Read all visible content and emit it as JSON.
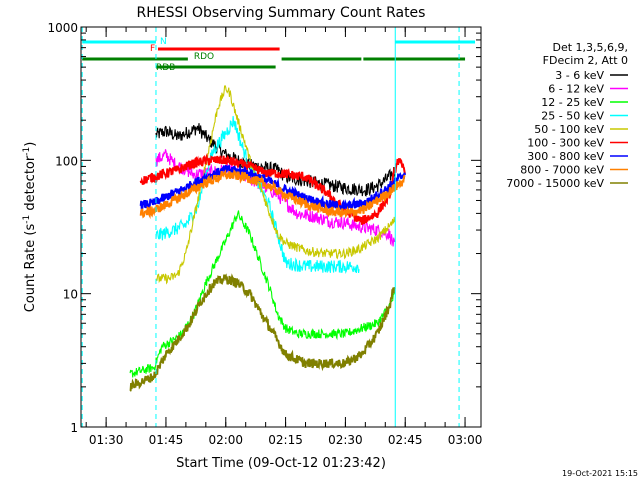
{
  "chart_data": {
    "type": "line",
    "title": "RHESSI Observing Summary Count Rates",
    "xlabel": "Start Time (09-Oct-12 01:23:42)",
    "ylabel_main": "Count Rate (s",
    "ylabel_sup1": "-1",
    "ylabel_mid": " detector",
    "ylabel_sup2": "-1",
    "ylabel_end": ")",
    "timestamp": "19-Oct-2021 15:15",
    "yscale": "log",
    "xlim": [
      "01:23:42",
      "03:04:00"
    ],
    "ylim": [
      1,
      1000
    ],
    "x_ticks": [
      "01:30",
      "01:45",
      "02:00",
      "02:15",
      "02:30",
      "02:45",
      "03:00"
    ],
    "y_ticks": [
      {
        "value": 1,
        "label": "1"
      },
      {
        "value": 10,
        "label": "10"
      },
      {
        "value": 100,
        "label": "100"
      },
      {
        "value": 1000,
        "label": "1000"
      }
    ],
    "legend_header": [
      "Det 1,3,5,6,9,",
      "FDecim 2, Att 0"
    ],
    "legend_placement": "right",
    "night_markers": [
      "01:24:00",
      "01:42:30",
      "02:42:30",
      "02:58:30"
    ],
    "flag_bars": [
      {
        "label": "N",
        "color": "#00ffff",
        "segments": [
          [
            "01:24:00",
            "01:42:30"
          ],
          [
            "02:42:30",
            "03:02:30"
          ]
        ]
      },
      {
        "label": "F",
        "color": "#ff0000",
        "segments": [
          [
            "01:43:00",
            "02:13:30"
          ]
        ]
      },
      {
        "label": "RDO",
        "color": "#008000",
        "segments": [
          [
            "01:24:00",
            "01:50:30"
          ],
          [
            "02:14:00",
            "02:34:00"
          ],
          [
            "02:34:30",
            "03:00:00"
          ]
        ]
      },
      {
        "label": "RDB",
        "color": "#008000",
        "segments": [
          [
            "01:42:30",
            "02:12:30"
          ]
        ]
      }
    ],
    "series": [
      {
        "name": "3 - 6 keV",
        "color": "#000000",
        "x": [
          "01:42:30",
          "01:45",
          "01:48",
          "01:50",
          "01:53",
          "01:56",
          "02:00",
          "02:03",
          "02:06",
          "02:10",
          "02:13",
          "02:15",
          "02:20",
          "02:25",
          "02:30",
          "02:35",
          "02:38",
          "02:41",
          "02:42:30"
        ],
        "y": [
          155,
          165,
          150,
          160,
          175,
          140,
          110,
          100,
          92,
          88,
          85,
          75,
          70,
          66,
          62,
          60,
          64,
          75,
          85
        ]
      },
      {
        "name": "6 - 12 keV",
        "color": "#ff00ff",
        "x": [
          "01:42:30",
          "01:45",
          "01:47",
          "01:50",
          "01:52",
          "01:55",
          "02:00",
          "02:05",
          "02:08",
          "02:11",
          "02:13",
          "02:15",
          "02:18",
          "02:22",
          "02:26",
          "02:30",
          "02:33",
          "02:38",
          "02:41",
          "02:42:30"
        ],
        "y": [
          100,
          110,
          95,
          85,
          78,
          80,
          85,
          75,
          68,
          60,
          55,
          48,
          40,
          38,
          35,
          34,
          32,
          30,
          28,
          22
        ]
      },
      {
        "name": "12 - 25 keV",
        "color": "#00ff00",
        "x": [
          "01:36",
          "01:42",
          "01:44",
          "01:47",
          "01:49",
          "01:52",
          "01:55",
          "02:00",
          "02:03",
          "02:06",
          "02:09",
          "02:11",
          "02:13",
          "02:15",
          "02:18",
          "02:22",
          "02:26",
          "02:30",
          "02:34",
          "02:38",
          "02:41",
          "02:42:30"
        ],
        "y": [
          2.5,
          2.8,
          4,
          4.5,
          5,
          7,
          12,
          25,
          40,
          28,
          16,
          11,
          7,
          5.5,
          5,
          5,
          5,
          5,
          5.5,
          6,
          8,
          10
        ]
      },
      {
        "name": "25 - 50 keV",
        "color": "#00ffff",
        "x": [
          "01:42:30",
          "01:44",
          "01:47",
          "01:50",
          "01:53",
          "01:55",
          "01:57",
          "02:00",
          "02:02",
          "02:04",
          "02:06",
          "02:09",
          "02:11",
          "02:13",
          "02:15",
          "02:20",
          "02:25",
          "02:30",
          "02:33:30"
        ],
        "y": [
          27,
          28,
          30,
          33,
          45,
          80,
          120,
          160,
          200,
          130,
          90,
          60,
          45,
          28,
          17,
          16,
          16,
          16,
          16
        ]
      },
      {
        "name": "50 - 100 keV",
        "color": "#c8c800",
        "x": [
          "01:42:30",
          "01:46",
          "01:48",
          "01:50",
          "01:53",
          "01:56",
          "01:58",
          "02:00",
          "02:01",
          "02:03",
          "02:05",
          "02:07",
          "02:09",
          "02:11",
          "02:13",
          "02:15",
          "02:20",
          "02:25",
          "02:30",
          "02:34",
          "02:38",
          "02:41",
          "02:42:30"
        ],
        "y": [
          13,
          13,
          14,
          20,
          50,
          130,
          250,
          350,
          320,
          200,
          130,
          80,
          60,
          40,
          28,
          24,
          21,
          20,
          20,
          22,
          26,
          32,
          36
        ]
      },
      {
        "name": "100 - 300 keV",
        "color": "#ff0000",
        "x": [
          "01:38:40",
          "01:42",
          "01:45",
          "01:48",
          "01:52",
          "01:56",
          "02:00",
          "02:03",
          "02:06",
          "02:10",
          "02:13",
          "02:16",
          "02:20",
          "02:25",
          "02:30",
          "02:34",
          "02:38",
          "02:41",
          "02:43",
          "02:45"
        ],
        "y": [
          70,
          75,
          80,
          85,
          95,
          100,
          100,
          95,
          90,
          80,
          80,
          78,
          75,
          58,
          42,
          35,
          40,
          55,
          100,
          85
        ]
      },
      {
        "name": "300 - 800 keV",
        "color": "#0000ff",
        "x": [
          "01:38:40",
          "01:42",
          "01:46",
          "01:50",
          "01:55",
          "02:00",
          "02:05",
          "02:10",
          "02:15",
          "02:20",
          "02:25",
          "02:30",
          "02:35",
          "02:40",
          "02:45"
        ],
        "y": [
          46,
          48,
          55,
          62,
          75,
          85,
          82,
          72,
          60,
          52,
          47,
          45,
          48,
          60,
          80
        ]
      },
      {
        "name": "800 - 7000 keV",
        "color": "#ff8000",
        "x": [
          "01:38:40",
          "01:42",
          "01:46",
          "01:50",
          "01:55",
          "02:00",
          "02:05",
          "02:10",
          "02:15",
          "02:20",
          "02:25",
          "02:30",
          "02:35",
          "02:40",
          "02:45"
        ],
        "y": [
          40,
          42,
          48,
          56,
          68,
          78,
          75,
          66,
          55,
          47,
          42,
          40,
          43,
          55,
          72
        ]
      },
      {
        "name": "7000 - 15000 keV",
        "color": "#808000",
        "x": [
          "01:36",
          "01:42",
          "01:45",
          "01:48",
          "01:51",
          "01:54",
          "01:57",
          "02:00",
          "02:03",
          "02:06",
          "02:09",
          "02:12",
          "02:15",
          "02:20",
          "02:25",
          "02:30",
          "02:34",
          "02:38",
          "02:41",
          "02:42:30"
        ],
        "y": [
          2.0,
          2.4,
          3.5,
          4.5,
          6,
          9,
          12,
          13,
          12,
          10,
          7,
          5,
          3.5,
          3,
          3,
          3,
          3.5,
          5,
          8,
          12
        ]
      }
    ]
  }
}
